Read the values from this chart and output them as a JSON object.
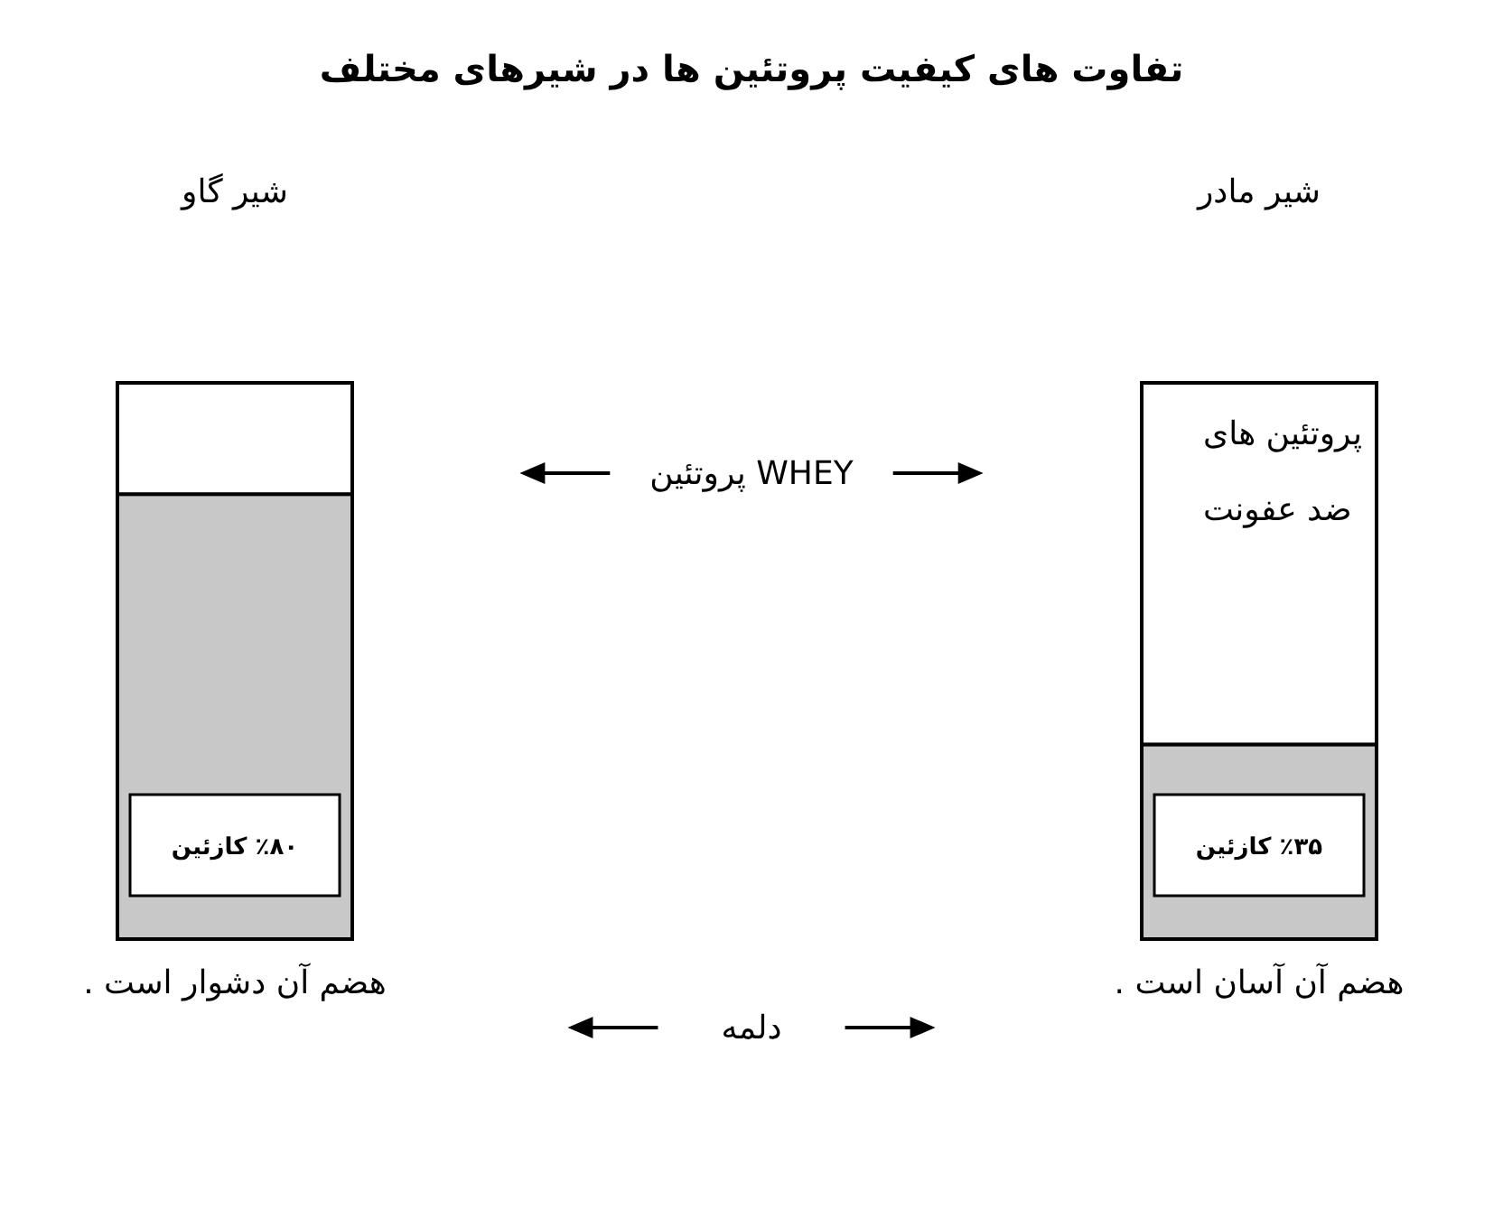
{
  "chart_data": {
    "type": "bar",
    "title": "تفاوت های کیفیت پروتئین ها در شیرهای مختلف",
    "categories": [
      "شیر گاو",
      "شیر مادر"
    ],
    "stacked": true,
    "series": [
      {
        "color": "#c8c8c8",
        "values": [
          80,
          35
        ],
        "value_labels": [
          "٪۸۰ کازئین",
          "٪۳۵ کازئین"
        ]
      },
      {
        "color": "#ffffff",
        "values": [
          20,
          65
        ]
      }
    ],
    "annotations": [
      "پروتئین WHEY",
      "دلمه",
      "پروتئین های ضد عفونت",
      {
        "text": "هضم آن دشوار است .",
        "x": "شیر گاو",
        "y": 0
      },
      {
        "text": "هضم آن آسان است .",
        "x": "شیر مادر",
        "y": 0
      }
    ]
  }
}
